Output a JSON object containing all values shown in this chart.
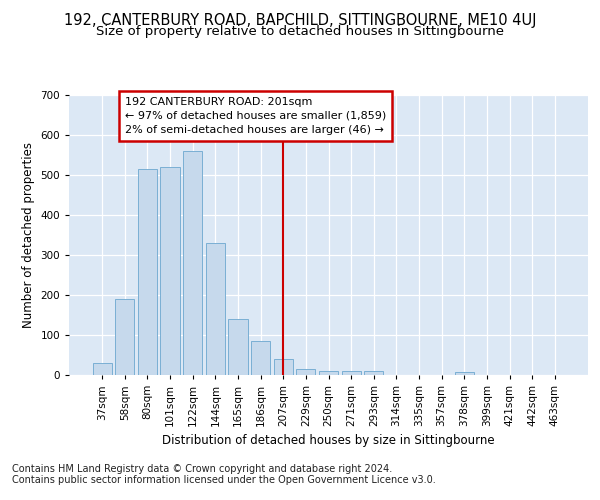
{
  "title": "192, CANTERBURY ROAD, BAPCHILD, SITTINGBOURNE, ME10 4UJ",
  "subtitle": "Size of property relative to detached houses in Sittingbourne",
  "xlabel": "Distribution of detached houses by size in Sittingbourne",
  "ylabel": "Number of detached properties",
  "footer_line1": "Contains HM Land Registry data © Crown copyright and database right 2024.",
  "footer_line2": "Contains public sector information licensed under the Open Government Licence v3.0.",
  "categories": [
    "37sqm",
    "58sqm",
    "80sqm",
    "101sqm",
    "122sqm",
    "144sqm",
    "165sqm",
    "186sqm",
    "207sqm",
    "229sqm",
    "250sqm",
    "271sqm",
    "293sqm",
    "314sqm",
    "335sqm",
    "357sqm",
    "378sqm",
    "399sqm",
    "421sqm",
    "442sqm",
    "463sqm"
  ],
  "values": [
    30,
    190,
    515,
    520,
    560,
    330,
    140,
    85,
    40,
    15,
    10,
    10,
    10,
    0,
    0,
    0,
    8,
    0,
    0,
    0,
    0
  ],
  "bar_color": "#c6d9ec",
  "bar_edgecolor": "#7aafd4",
  "vline_x_index": 8,
  "vline_color": "#cc0000",
  "annotation_line1": "192 CANTERBURY ROAD: 201sqm",
  "annotation_line2": "← 97% of detached houses are smaller (1,859)",
  "annotation_line3": "2% of semi-detached houses are larger (46) →",
  "annotation_box_color": "#cc0000",
  "ylim": [
    0,
    700
  ],
  "yticks": [
    0,
    100,
    200,
    300,
    400,
    500,
    600,
    700
  ],
  "plot_background": "#dce8f5",
  "grid_color": "#ffffff",
  "title_fontsize": 10.5,
  "subtitle_fontsize": 9.5,
  "axis_label_fontsize": 8.5,
  "tick_fontsize": 7.5,
  "footer_fontsize": 7.0,
  "annotation_fontsize": 8.0
}
